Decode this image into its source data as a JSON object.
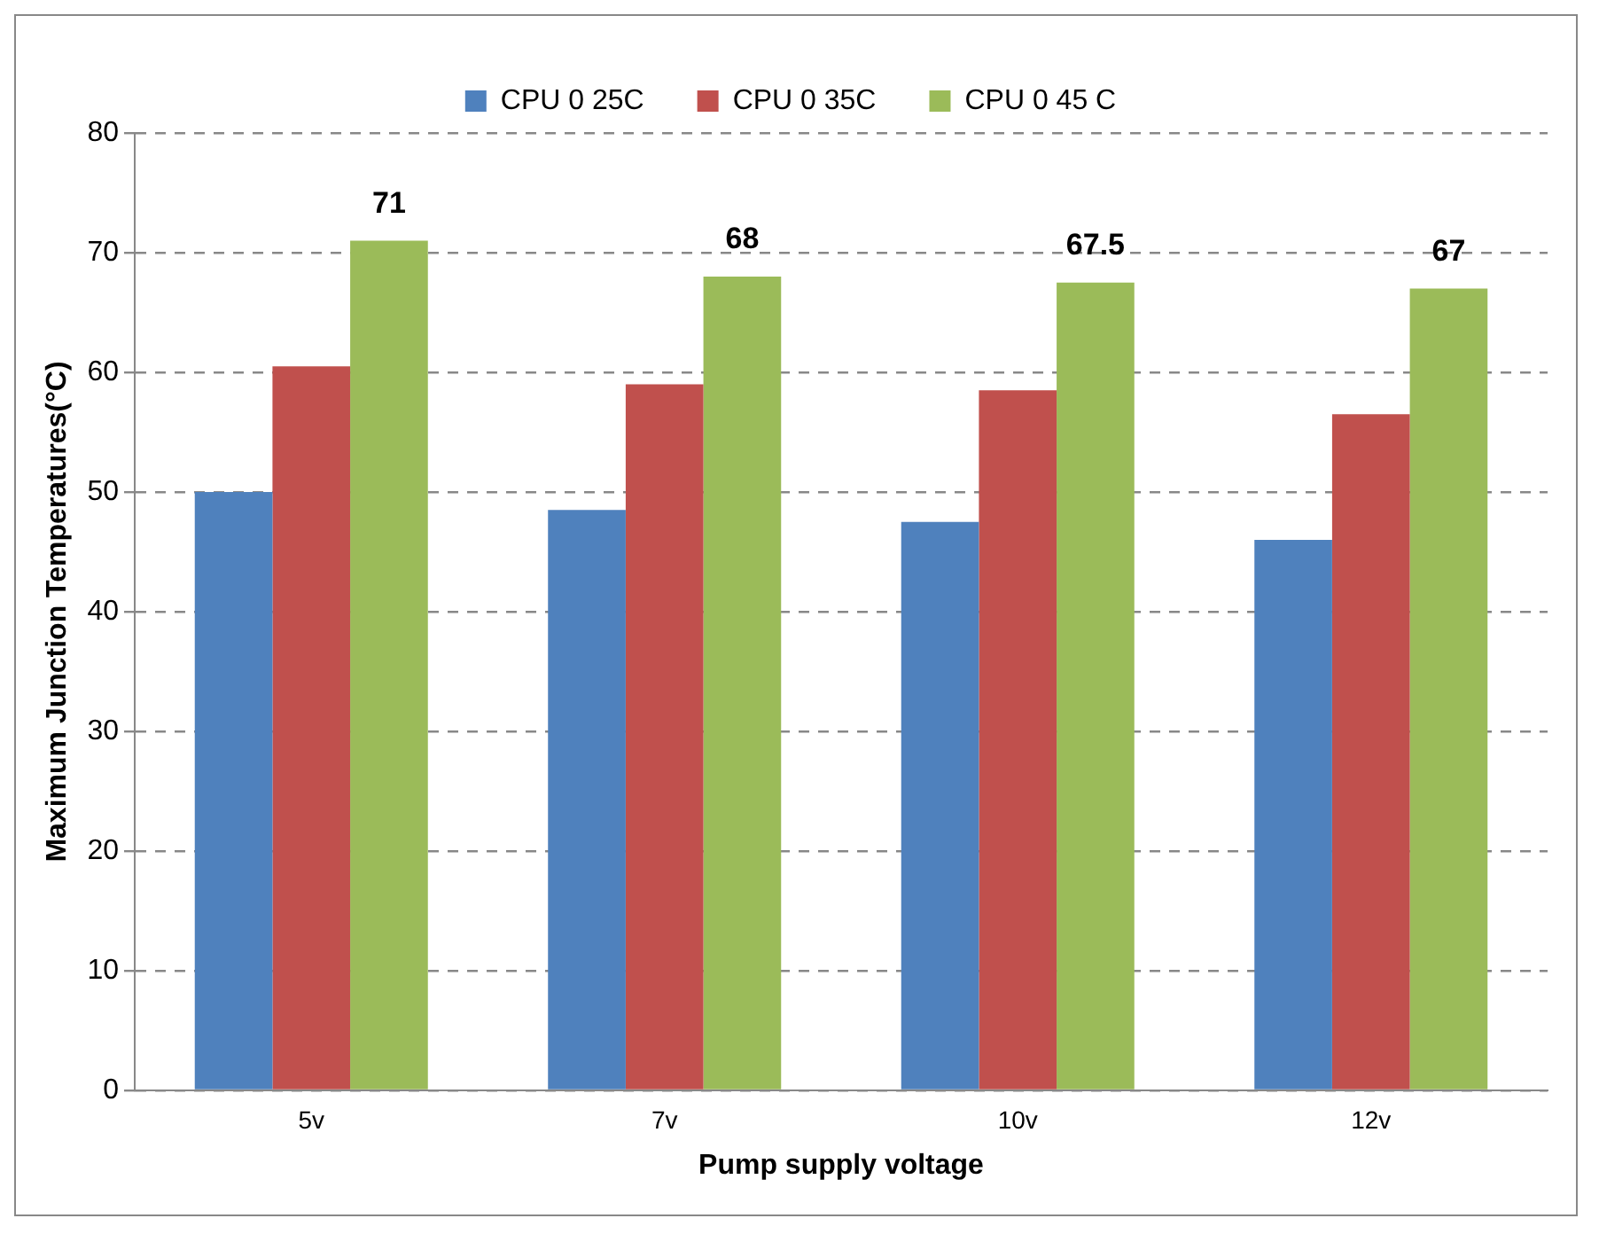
{
  "chart_data": {
    "type": "bar",
    "xlabel": "Pump supply voltage",
    "ylabel": "Maximum Junction Temperatures(°C)",
    "categories": [
      "5v",
      "7v",
      "10v",
      "12v"
    ],
    "series": [
      {
        "name": "CPU 0 25C",
        "color": "#4f81bd",
        "values": [
          50,
          48.5,
          47.5,
          46
        ]
      },
      {
        "name": "CPU 0 35C",
        "color": "#c0504d",
        "values": [
          60.5,
          59,
          58.5,
          56.5
        ]
      },
      {
        "name": "CPU 0 45 C",
        "color": "#9bbb59",
        "values": [
          71,
          68,
          67.5,
          67
        ],
        "value_labels": [
          "71",
          "68",
          "67.5",
          "67"
        ]
      }
    ],
    "ylim": [
      0,
      80
    ],
    "yticks": [
      0,
      10,
      20,
      30,
      40,
      50,
      60,
      70,
      80
    ],
    "grid": "y",
    "legend": "top"
  }
}
